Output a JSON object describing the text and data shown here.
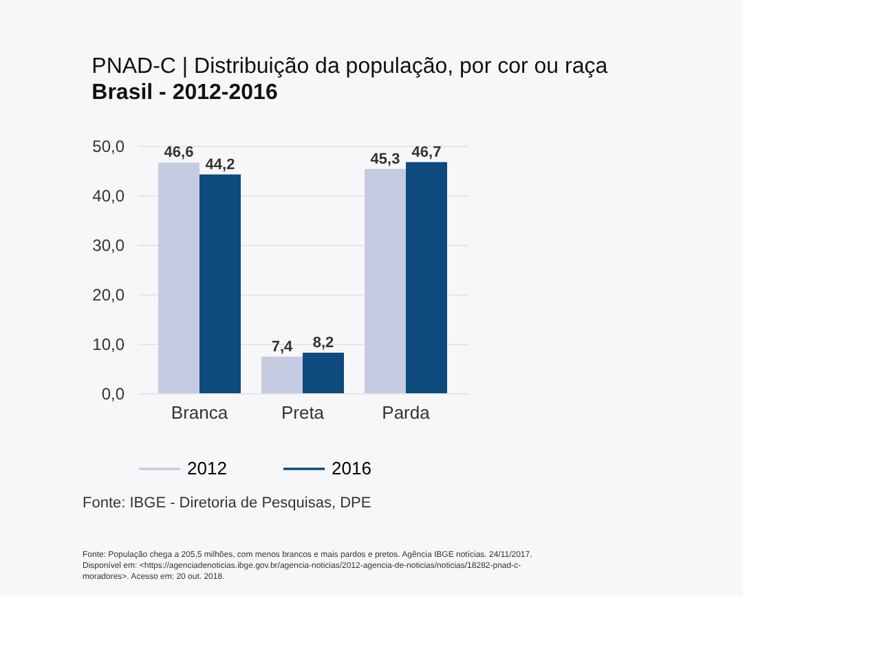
{
  "chart_data": {
    "type": "bar",
    "title": "PNAD-C | Distribuição da população, por cor ou raça",
    "subtitle": "Brasil - 2012-2016",
    "categories": [
      "Branca",
      "Preta",
      "Parda"
    ],
    "series": [
      {
        "name": "2012",
        "color": "#c5cbe0",
        "values": [
          46.6,
          7.4,
          45.3
        ]
      },
      {
        "name": "2016",
        "color": "#0d4a7e",
        "values": [
          44.2,
          8.2,
          46.7
        ]
      }
    ],
    "ylim": [
      0,
      50
    ],
    "yticks": [
      {
        "value": 0,
        "label": "0,0"
      },
      {
        "value": 10,
        "label": "10,0"
      },
      {
        "value": 20,
        "label": "20,0"
      },
      {
        "value": 30,
        "label": "30,0"
      },
      {
        "value": 40,
        "label": "40,0"
      },
      {
        "value": 50,
        "label": "50,0"
      }
    ],
    "value_labels": [
      [
        "46,6",
        "7,4",
        "45,3"
      ],
      [
        "44,2",
        "8,2",
        "46,7"
      ]
    ],
    "grid": "y",
    "legend": "bottom",
    "annotations": [
      "Fonte: IBGE - Diretoria de Pesquisas, DPE",
      "Fonte: População chega a 205,5 milhões, com menos brancos e mais pardos e pretos. Agência IBGE notícias. 24/11/2017. Disponível em: <https://agenciadenoticias.ibge.gov.br/agencia-noticias/2012-agencia-de-noticias/noticias/18282-pnad-c-moradores>. Acesso em: 20 out. 2018."
    ]
  }
}
